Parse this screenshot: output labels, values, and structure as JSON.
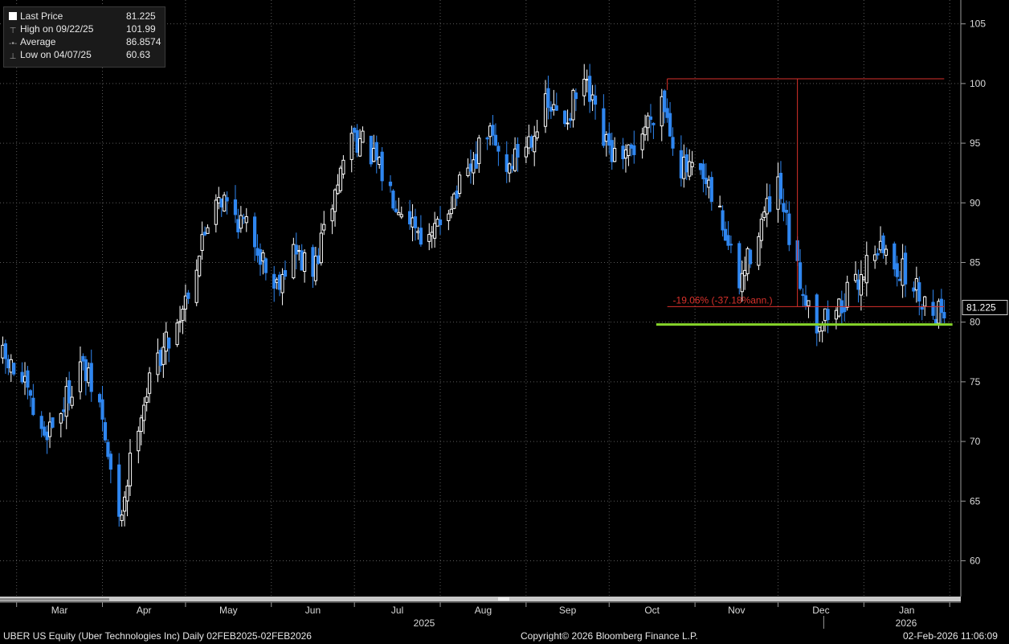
{
  "legend": {
    "items": [
      {
        "label": "Last Price",
        "value": "81.225",
        "icon": "white-square-icon"
      },
      {
        "label": "High on 09/22/25",
        "value": "101.99",
        "icon": "high-marker-icon"
      },
      {
        "label": "Average",
        "value": "86.8574",
        "icon": "average-marker-icon"
      },
      {
        "label": "Low on 04/07/25",
        "value": "60.63",
        "icon": "low-marker-icon"
      }
    ]
  },
  "footer": {
    "left": "UBER US Equity (Uber Technologies Inc) Daily 02FEB2025-02FEB2026",
    "center": "Copyright© 2026 Bloomberg Finance L.P.",
    "right": "02-Feb-2026 11:06:09"
  },
  "colors": {
    "background": "#000000",
    "up_candle": "#ffffff",
    "down_candle": "#2f86f0",
    "support_line": "#86d42a",
    "measure_line": "#d9312b",
    "grid": "#5a5a5a"
  },
  "chart_data": {
    "type": "candlestick",
    "title": "",
    "xlabel": "",
    "ylabel": "",
    "ylim": [
      57,
      107
    ],
    "y_ticks": [
      60,
      65,
      70,
      75,
      80,
      85,
      90,
      95,
      100,
      105
    ],
    "x_month_labels": [
      "Mar",
      "Apr",
      "May",
      "Jun",
      "Jul",
      "Aug",
      "Sep",
      "Oct",
      "Nov",
      "Dec",
      "Jan"
    ],
    "x_year_labels": [
      "2025",
      "2026"
    ],
    "last_price_label": "81.225",
    "last_price": 81.225,
    "support_level": 79.8,
    "annotation": {
      "text": "-19.06% (-37.18%ann.)",
      "from_date": "2025-10-22",
      "from_price": 100.4,
      "to_date": "2026-01-30",
      "to_price": 81.3
    },
    "anchors": [
      [
        "2025-02-24",
        77
      ],
      [
        "2025-03-03",
        75
      ],
      [
        "2025-03-10",
        70.5
      ],
      [
        "2025-03-17",
        72.5
      ],
      [
        "2025-03-24",
        76.5
      ],
      [
        "2025-03-31",
        73
      ],
      [
        "2025-04-07",
        63
      ],
      [
        "2025-04-14",
        72
      ],
      [
        "2025-04-21",
        77
      ],
      [
        "2025-04-28",
        80
      ],
      [
        "2025-05-05",
        85
      ],
      [
        "2025-05-12",
        91
      ],
      [
        "2025-05-19",
        89
      ],
      [
        "2025-05-26",
        87
      ],
      [
        "2025-06-02",
        83
      ],
      [
        "2025-06-09",
        86
      ],
      [
        "2025-06-16",
        84
      ],
      [
        "2025-06-23",
        90
      ],
      [
        "2025-06-30",
        96
      ],
      [
        "2025-07-07",
        94
      ],
      [
        "2025-07-14",
        91
      ],
      [
        "2025-07-21",
        89
      ],
      [
        "2025-07-28",
        86.5
      ],
      [
        "2025-08-04",
        90
      ],
      [
        "2025-08-11",
        92
      ],
      [
        "2025-08-18",
        96
      ],
      [
        "2025-08-25",
        93
      ],
      [
        "2025-09-01",
        95
      ],
      [
        "2025-09-08",
        98
      ],
      [
        "2025-09-15",
        97
      ],
      [
        "2025-09-22",
        100
      ],
      [
        "2025-09-29",
        95
      ],
      [
        "2025-10-06",
        93
      ],
      [
        "2025-10-13",
        96
      ],
      [
        "2025-10-20",
        99
      ],
      [
        "2025-10-27",
        93
      ],
      [
        "2025-11-03",
        92
      ],
      [
        "2025-11-10",
        89
      ],
      [
        "2025-11-17",
        83
      ],
      [
        "2025-11-24",
        88
      ],
      [
        "2025-12-01",
        91
      ],
      [
        "2025-12-08",
        84
      ],
      [
        "2025-12-15",
        80
      ],
      [
        "2025-12-22",
        81
      ],
      [
        "2025-12-29",
        83
      ],
      [
        "2026-01-05",
        86.5
      ],
      [
        "2026-01-12",
        85
      ],
      [
        "2026-01-19",
        83
      ],
      [
        "2026-01-26",
        81
      ],
      [
        "2026-01-30",
        81.2
      ]
    ]
  }
}
